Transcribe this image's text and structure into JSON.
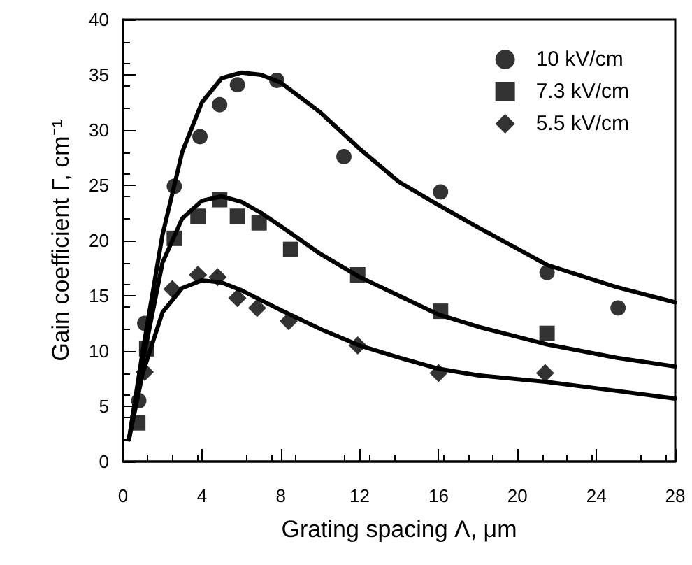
{
  "chart_data": {
    "type": "scatter",
    "xlabel": "Grating spacing Λ, μm",
    "ylabel": "Gain coefficient Γ, cm⁻¹",
    "xlim": [
      0,
      28
    ],
    "xticks": [
      0,
      4,
      8,
      12,
      16,
      20,
      24,
      28
    ],
    "ylim": [
      0,
      40
    ],
    "yticks": [
      0,
      5,
      10,
      15,
      20,
      25,
      30,
      35,
      40
    ],
    "grid": false,
    "legend": "top right",
    "series": [
      {
        "name": "10 kV/cm",
        "marker": "circle",
        "color": "#000000",
        "x": [
          0.8,
          1.1,
          2.6,
          3.9,
          4.9,
          5.8,
          7.8,
          11.2,
          16.1,
          21.5,
          25.1
        ],
        "values": [
          5.5,
          12.5,
          24.9,
          29.4,
          32.3,
          34.1,
          34.5,
          27.6,
          24.4,
          17.1,
          13.9
        ]
      },
      {
        "name": "7.3 kV/cm",
        "marker": "square",
        "color": "#000000",
        "x": [
          0.75,
          1.2,
          2.6,
          3.8,
          4.9,
          5.8,
          6.9,
          8.5,
          11.9,
          16.1,
          21.5
        ],
        "values": [
          3.5,
          10.2,
          20.2,
          22.2,
          23.7,
          22.2,
          21.6,
          19.2,
          16.9,
          13.6,
          11.6
        ]
      },
      {
        "name": "5.5 kV/cm",
        "marker": "diamond",
        "color": "#000000",
        "x": [
          1.1,
          2.5,
          3.8,
          4.8,
          5.8,
          6.8,
          8.4,
          11.9,
          16.0,
          21.4
        ],
        "values": [
          8.1,
          15.6,
          16.9,
          16.7,
          14.8,
          13.9,
          12.7,
          10.5,
          8.0,
          8.0
        ]
      },
      {
        "type": "line",
        "marker": "none",
        "line_style": "solid",
        "color": "#000000",
        "x": [
          0.3,
          1,
          2,
          3,
          4,
          5,
          6,
          7,
          8,
          10,
          12,
          14,
          16,
          18,
          21.5,
          25,
          28
        ],
        "values": [
          2,
          10,
          20.5,
          28,
          32.5,
          34.7,
          35.2,
          35,
          34.3,
          31.6,
          28.3,
          25.3,
          23.2,
          21.2,
          17.8,
          15.8,
          14.4
        ]
      },
      {
        "type": "line",
        "marker": "none",
        "line_style": "solid",
        "color": "#000000",
        "x": [
          0.3,
          1,
          2,
          3,
          4,
          5,
          6,
          7,
          8,
          10,
          12,
          14,
          16,
          18,
          21.5,
          25,
          28
        ],
        "values": [
          2,
          9,
          18,
          22,
          23.6,
          24,
          23.5,
          22.5,
          21.3,
          18.8,
          16.7,
          15,
          13.3,
          12.2,
          10.6,
          9.4,
          8.6
        ]
      },
      {
        "type": "line",
        "marker": "none",
        "line_style": "solid",
        "color": "#000000",
        "x": [
          0.3,
          1,
          2,
          3,
          4,
          5,
          6,
          7,
          8,
          10,
          12,
          14,
          16,
          18,
          21.5,
          25,
          28
        ],
        "values": [
          2,
          8,
          13.5,
          15.7,
          16.4,
          16.2,
          15.5,
          14.6,
          13.7,
          12,
          10.5,
          9.4,
          8.4,
          7.8,
          7.2,
          6.4,
          5.7
        ]
      }
    ]
  }
}
